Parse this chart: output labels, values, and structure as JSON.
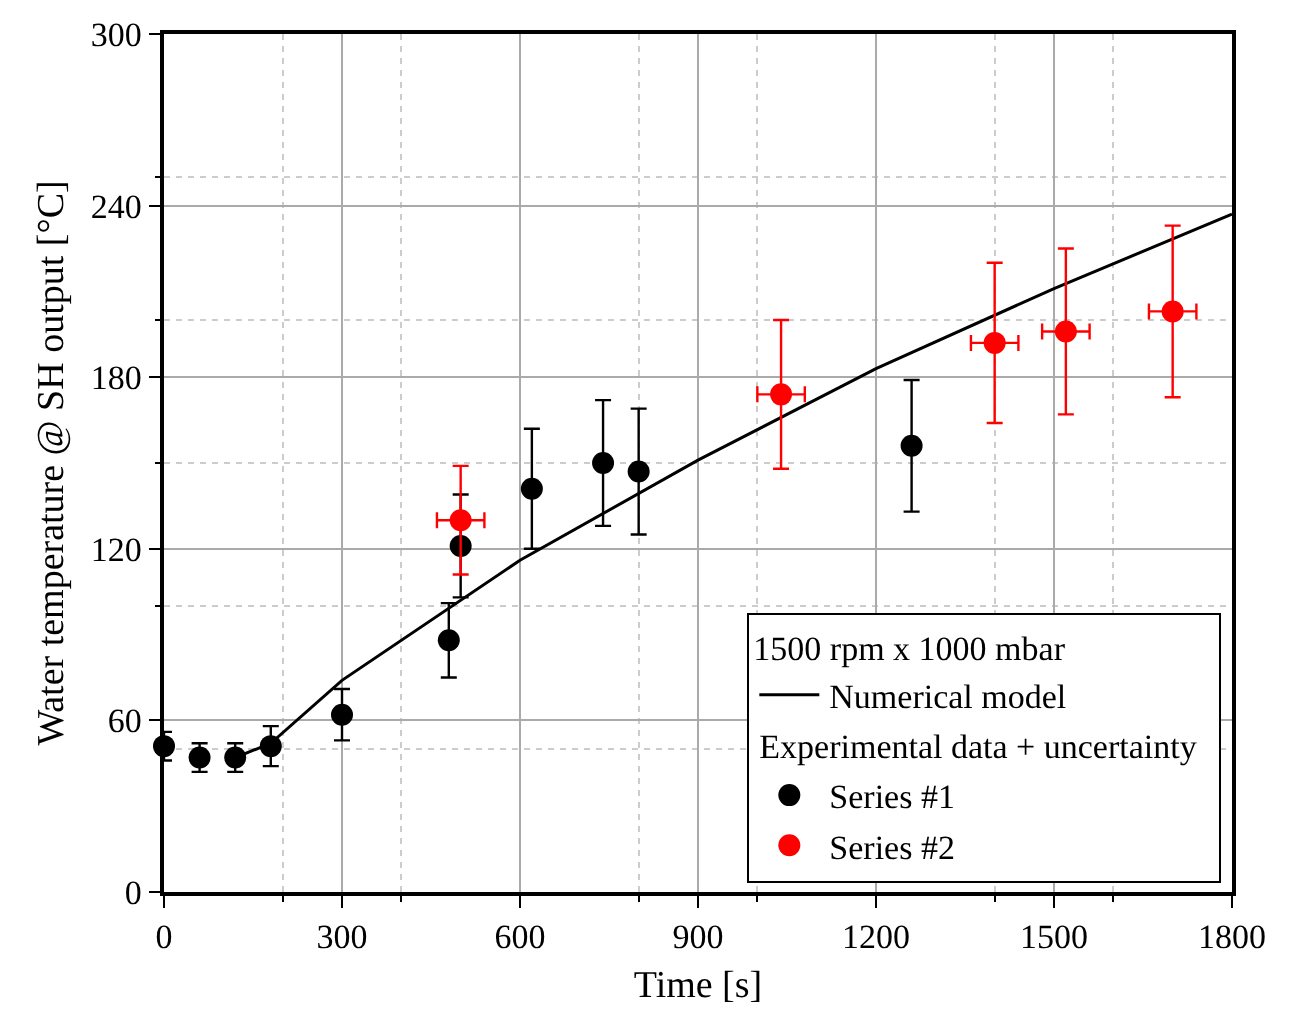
{
  "chart_data": {
    "type": "scatter",
    "xlabel": "Time [s]",
    "ylabel": "Water temperature @ SH output [°C]",
    "legend_title": "1500 rpm x 1000 mbar",
    "annotations": [
      "Experimental data + uncertainty"
    ],
    "xlim": [
      0,
      1800
    ],
    "xticks": [
      0,
      300,
      600,
      900,
      1200,
      1500,
      1800
    ],
    "ylim": [
      0,
      300
    ],
    "yticks": [
      0,
      60,
      120,
      180,
      240,
      300
    ],
    "grid": true,
    "legend": "bottom right",
    "marker": "circle",
    "series": [
      {
        "name": "Numerical model",
        "type": "line",
        "color": "#000000",
        "line_style": "solid",
        "marker": "none",
        "x": [
          120,
          180,
          300,
          600,
          900,
          1200,
          1500,
          1800
        ],
        "values": [
          47,
          52,
          74,
          116,
          151,
          183,
          211,
          237
        ]
      },
      {
        "name": "Series #1",
        "color": "#000000",
        "x": [
          0,
          60,
          120,
          180,
          300,
          480,
          500,
          620,
          740,
          800,
          1260
        ],
        "values": [
          51,
          47,
          47,
          51,
          62,
          88,
          121,
          141,
          150,
          147,
          156
        ],
        "errors": [
          5,
          5,
          5,
          7,
          9,
          13,
          18,
          21,
          22,
          22,
          23
        ],
        "xerrors": [
          8,
          8,
          8,
          8,
          8,
          8,
          8,
          8,
          8,
          8,
          8
        ]
      },
      {
        "name": "Series #2",
        "color": "#ff0000",
        "x": [
          500,
          1040,
          1400,
          1520,
          1700
        ],
        "values": [
          130,
          174,
          192,
          196,
          203
        ],
        "errors": [
          19,
          26,
          28,
          29,
          30
        ],
        "xerrors": [
          40,
          40,
          40,
          40,
          40
        ]
      }
    ]
  }
}
